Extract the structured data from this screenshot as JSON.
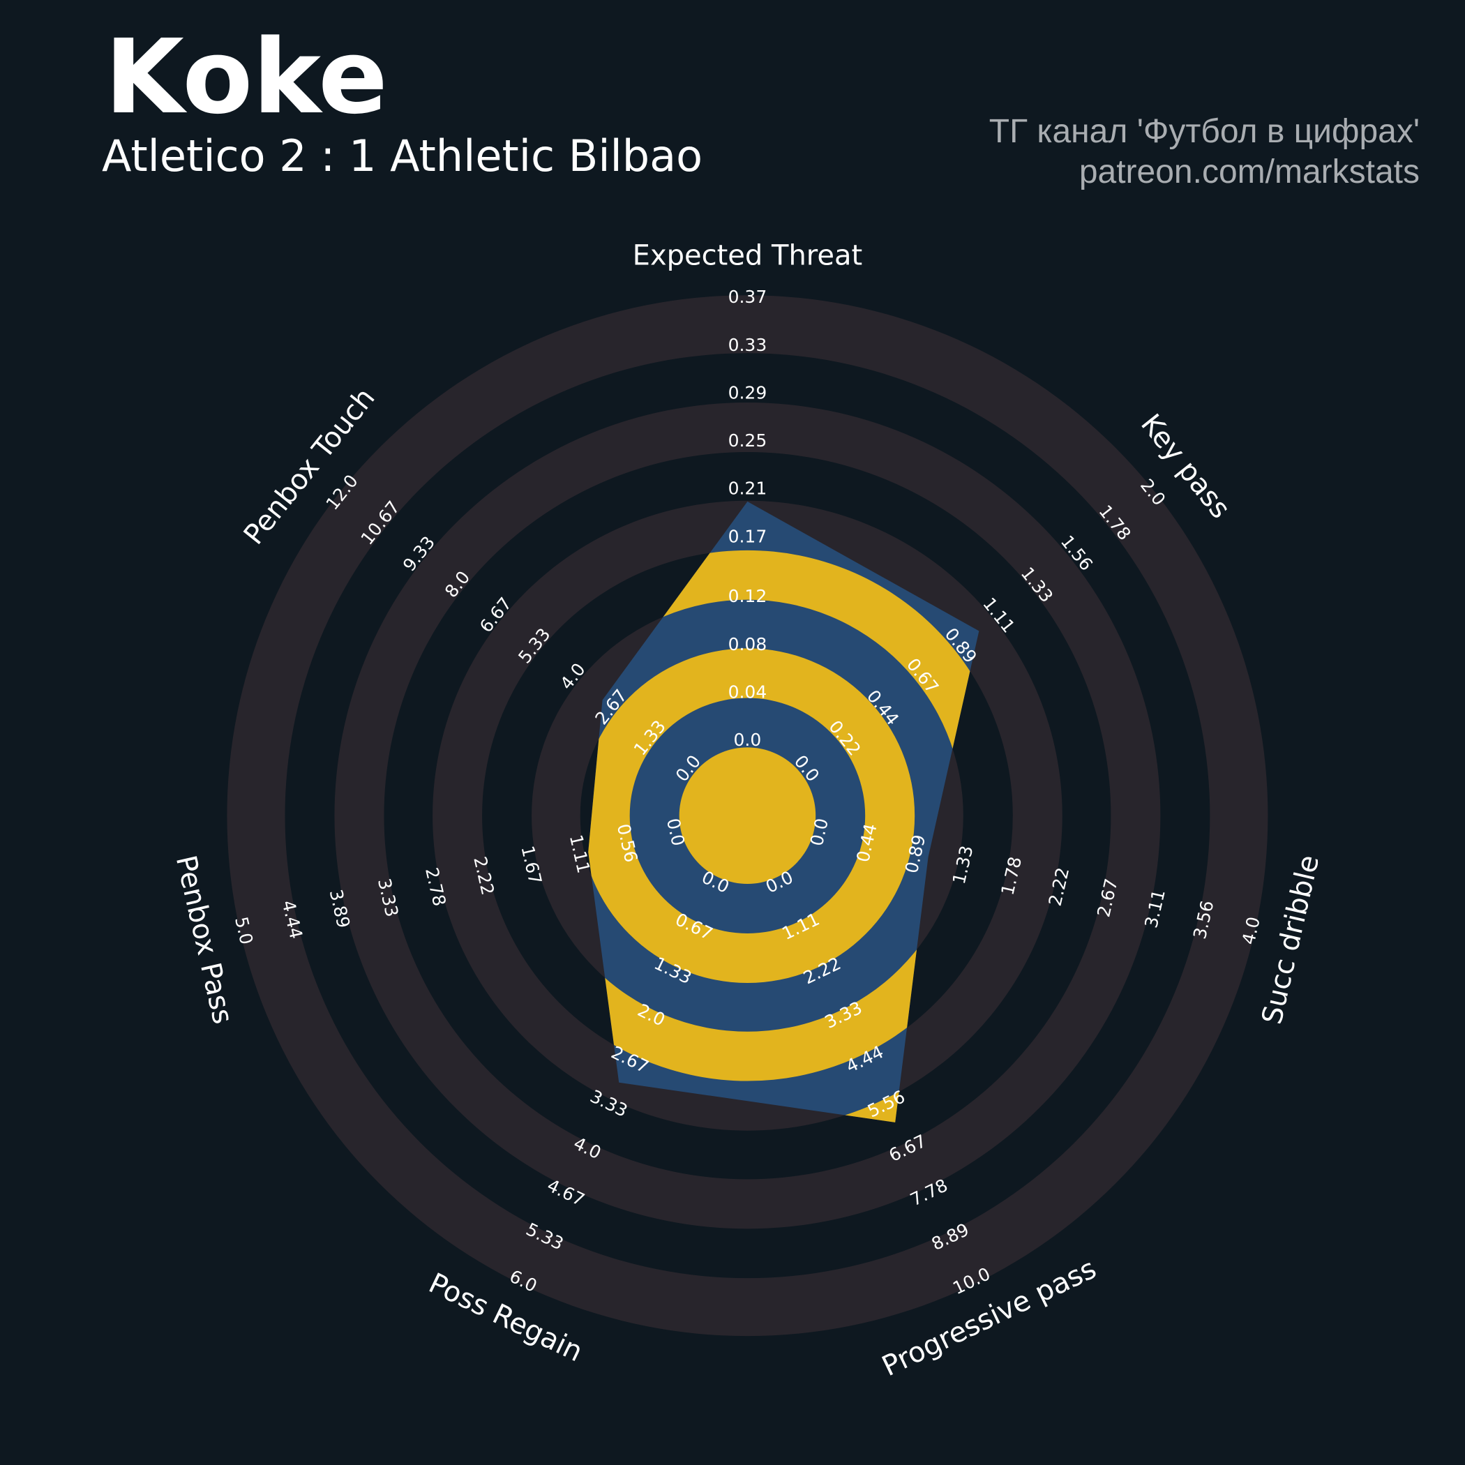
{
  "chart_data": {
    "type": "radar",
    "title": "Koke",
    "subtitle": "Atletico 2 : 1 Athletic Bilbao",
    "credits": [
      "ТГ канал 'Футбол в цифрах'",
      "patreon.com/markstats"
    ],
    "axes": [
      {
        "name": "Expected Threat",
        "ticks": [
          {
            "value": 0,
            "label": "0.0"
          },
          0.04,
          0.08,
          0.12,
          0.17,
          0.21,
          0.25,
          0.29,
          0.33,
          0.37
        ]
      },
      {
        "name": "Key pass",
        "ticks": [
          {
            "value": 0,
            "label": "0.0"
          },
          0.22,
          0.44,
          0.67,
          0.89,
          1.11,
          1.33,
          1.56,
          1.78,
          {
            "value": 2,
            "label": "2.0"
          }
        ]
      },
      {
        "name": "Succ dribble",
        "ticks": [
          {
            "value": 0,
            "label": "0.0"
          },
          0.44,
          0.89,
          1.33,
          1.78,
          2.22,
          2.67,
          3.11,
          3.56,
          {
            "value": 4,
            "label": "4.0"
          }
        ]
      },
      {
        "name": "Progressive pass",
        "ticks": [
          {
            "value": 0,
            "label": "0.0"
          },
          1.11,
          2.22,
          3.33,
          4.44,
          5.56,
          6.67,
          7.78,
          8.89,
          {
            "value": 10,
            "label": "10.0"
          }
        ]
      },
      {
        "name": "Poss Regain",
        "ticks": [
          {
            "value": 0,
            "label": "0.0"
          },
          0.67,
          1.33,
          {
            "value": 2,
            "label": "2.0"
          },
          2.67,
          3.33,
          {
            "value": 4,
            "label": "4.0"
          },
          4.67,
          5.33,
          {
            "value": 6,
            "label": "6.0"
          }
        ]
      },
      {
        "name": "Penbox Pass",
        "ticks": [
          {
            "value": 0,
            "label": "0.0"
          },
          0.56,
          1.11,
          1.67,
          2.22,
          2.78,
          3.33,
          3.89,
          4.44,
          {
            "value": 5,
            "label": "5.0"
          }
        ]
      },
      {
        "name": "Penbox Touch",
        "ticks": [
          {
            "value": 0,
            "label": "0.0"
          },
          1.33,
          2.67,
          {
            "value": 4,
            "label": "4.0"
          },
          5.33,
          6.67,
          {
            "value": 8,
            "label": "8.0"
          },
          9.33,
          10.67,
          {
            "value": 12,
            "label": "12.0"
          }
        ]
      }
    ],
    "values": [
      0.2,
      1,
      1,
      6,
      3,
      1,
      3
    ],
    "color": "#264a73",
    "ring_color": "#e2b41e",
    "background_ring_color": "#28252c"
  }
}
